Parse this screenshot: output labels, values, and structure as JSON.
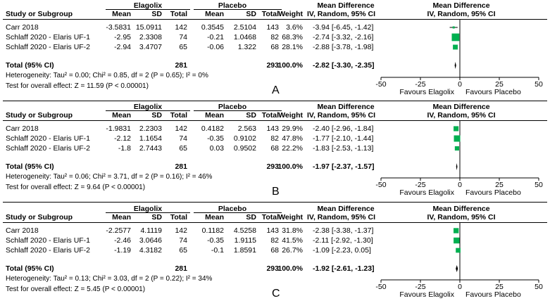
{
  "header": {
    "group1": "Elagolix",
    "group2": "Placebo",
    "effect_col": "Mean Difference",
    "study": "Study or Subgroup",
    "mean": "Mean",
    "sd": "SD",
    "total": "Total",
    "weight": "Weight",
    "method": "IV, Random, 95% CI"
  },
  "panels": [
    {
      "label": "A",
      "rows": [
        {
          "study": "Carr 2018",
          "m1": "-3.5831",
          "sd1": "15.0911",
          "n1": "142",
          "m2": "0.3545",
          "sd2": "2.5104",
          "n2": "143",
          "weight": "3.6%",
          "ci": "-3.94 [-6.45, -1.42]"
        },
        {
          "study": "Schlaff 2020 - Elaris UF-1",
          "m1": "-2.95",
          "sd1": "2.3308",
          "n1": "74",
          "m2": "-0.21",
          "sd2": "1.0468",
          "n2": "82",
          "weight": "68.3%",
          "ci": "-2.74 [-3.32, -2.16]"
        },
        {
          "study": "Schlaff 2020 - Elaris UF-2",
          "m1": "-2.94",
          "sd1": "3.4707",
          "n1": "65",
          "m2": "-0.06",
          "sd2": "1.322",
          "n2": "68",
          "weight": "28.1%",
          "ci": "-2.88 [-3.78, -1.98]"
        }
      ],
      "total": {
        "label": "Total (95% CI)",
        "n1": "281",
        "n2": "293",
        "weight": "100.0%",
        "ci": "-2.82 [-3.30, -2.35]"
      },
      "heterogeneity": "Heterogeneity: Tau² = 0.00; Chi² = 0.85, df = 2 (P = 0.65); I² = 0%",
      "overall": "Test for overall effect: Z = 11.59 (P < 0.00001)"
    },
    {
      "label": "B",
      "rows": [
        {
          "study": "Carr 2018",
          "m1": "-1.9831",
          "sd1": "2.2303",
          "n1": "142",
          "m2": "0.4182",
          "sd2": "2.563",
          "n2": "143",
          "weight": "29.9%",
          "ci": "-2.40 [-2.96, -1.84]"
        },
        {
          "study": "Schlaff 2020 - Elaris UF-1",
          "m1": "-2.12",
          "sd1": "1.1654",
          "n1": "74",
          "m2": "-0.35",
          "sd2": "0.9102",
          "n2": "82",
          "weight": "47.8%",
          "ci": "-1.77 [-2.10, -1.44]"
        },
        {
          "study": "Schlaff 2020 - Elaris UF-2",
          "m1": "-1.8",
          "sd1": "2.7443",
          "n1": "65",
          "m2": "0.03",
          "sd2": "0.9502",
          "n2": "68",
          "weight": "22.2%",
          "ci": "-1.83 [-2.53, -1.13]"
        }
      ],
      "total": {
        "label": "Total (95% CI)",
        "n1": "281",
        "n2": "293",
        "weight": "100.0%",
        "ci": "-1.97 [-2.37, -1.57]"
      },
      "heterogeneity": "Heterogeneity: Tau² = 0.06; Chi² = 3.71, df = 2 (P = 0.16); I² = 46%",
      "overall": "Test for overall effect: Z = 9.64 (P < 0.00001)"
    },
    {
      "label": "C",
      "rows": [
        {
          "study": "Carr 2018",
          "m1": "-2.2577",
          "sd1": "4.1119",
          "n1": "142",
          "m2": "0.1182",
          "sd2": "4.5258",
          "n2": "143",
          "weight": "31.8%",
          "ci": "-2.38 [-3.38, -1.37]"
        },
        {
          "study": "Schlaff 2020 - Elaris UF-1",
          "m1": "-2.46",
          "sd1": "3.0646",
          "n1": "74",
          "m2": "-0.35",
          "sd2": "1.9115",
          "n2": "82",
          "weight": "41.5%",
          "ci": "-2.11 [-2.92, -1.30]"
        },
        {
          "study": "Schlaff 2020 - Elaris UF-2",
          "m1": "-1.19",
          "sd1": "4.3182",
          "n1": "65",
          "m2": "-0.1",
          "sd2": "1.8591",
          "n2": "68",
          "weight": "26.7%",
          "ci": "-1.09 [-2.23, 0.05]"
        }
      ],
      "total": {
        "label": "Total (95% CI)",
        "n1": "281",
        "n2": "293",
        "weight": "100.0%",
        "ci": "-1.92 [-2.61, -1.23]"
      },
      "heterogeneity": "Heterogeneity: Tau² = 0.13; Chi² = 3.03, df = 2 (P = 0.22); I² = 34%",
      "overall": "Test for overall effect: Z = 5.45 (P < 0.00001)"
    }
  ],
  "chart_data": [
    {
      "type": "forest",
      "title": "A",
      "xlim": [
        -50,
        50
      ],
      "ticks": [
        -50,
        -25,
        0,
        25,
        50
      ],
      "tick_labels": [
        "-50",
        "-25",
        "0",
        "25",
        "50"
      ],
      "favours_left": "Favours Elagolix",
      "favours_right": "Favours Placebo",
      "studies": [
        {
          "name": "Carr 2018",
          "md": -3.94,
          "lo": -6.45,
          "hi": -1.42,
          "weight": 3.6
        },
        {
          "name": "Schlaff 2020 - Elaris UF-1",
          "md": -2.74,
          "lo": -3.32,
          "hi": -2.16,
          "weight": 68.3
        },
        {
          "name": "Schlaff 2020 - Elaris UF-2",
          "md": -2.88,
          "lo": -3.78,
          "hi": -1.98,
          "weight": 28.1
        }
      ],
      "pooled": {
        "md": -2.82,
        "lo": -3.3,
        "hi": -2.35
      },
      "color": "#00b050"
    },
    {
      "type": "forest",
      "title": "B",
      "xlim": [
        -50,
        50
      ],
      "ticks": [
        -50,
        -25,
        0,
        25,
        50
      ],
      "tick_labels": [
        "-50",
        "-25",
        "0",
        "25",
        "50"
      ],
      "favours_left": "Favours Elagolix",
      "favours_right": "Favours Placebo",
      "studies": [
        {
          "name": "Carr 2018",
          "md": -2.4,
          "lo": -2.96,
          "hi": -1.84,
          "weight": 29.9
        },
        {
          "name": "Schlaff 2020 - Elaris UF-1",
          "md": -1.77,
          "lo": -2.1,
          "hi": -1.44,
          "weight": 47.8
        },
        {
          "name": "Schlaff 2020 - Elaris UF-2",
          "md": -1.83,
          "lo": -2.53,
          "hi": -1.13,
          "weight": 22.2
        }
      ],
      "pooled": {
        "md": -1.97,
        "lo": -2.37,
        "hi": -1.57
      },
      "color": "#00b050"
    },
    {
      "type": "forest",
      "title": "C",
      "xlim": [
        -50,
        50
      ],
      "ticks": [
        -50,
        -25,
        0,
        25,
        50
      ],
      "tick_labels": [
        "-50",
        "-25",
        "0",
        "25",
        "50"
      ],
      "favours_left": "Favours Elagolix",
      "favours_right": "Favours Placebo",
      "studies": [
        {
          "name": "Carr 2018",
          "md": -2.38,
          "lo": -3.38,
          "hi": -1.37,
          "weight": 31.8
        },
        {
          "name": "Schlaff 2020 - Elaris UF-1",
          "md": -2.11,
          "lo": -2.92,
          "hi": -1.3,
          "weight": 41.5
        },
        {
          "name": "Schlaff 2020 - Elaris UF-2",
          "md": -1.09,
          "lo": -2.23,
          "hi": 0.05,
          "weight": 26.7
        }
      ],
      "pooled": {
        "md": -1.92,
        "lo": -2.61,
        "hi": -1.23
      },
      "color": "#00b050"
    }
  ]
}
